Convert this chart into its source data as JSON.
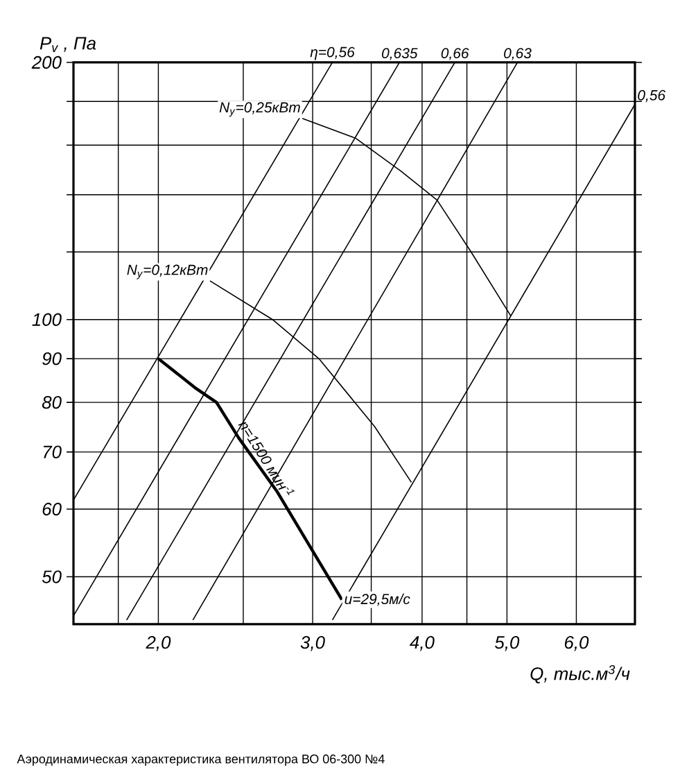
{
  "chart_data": {
    "type": "line",
    "xlabel": "Q, тыс.м$^{3}$/ч",
    "ylabel": "P$_{v}$ , Па",
    "log": "xy",
    "grid": true,
    "marker": "none",
    "line_style": "solid",
    "xlim": [
      1.6,
      7.0
    ],
    "ylim": [
      44,
      200
    ],
    "xticks": [
      {
        "value": 1.8,
        "label": null
      },
      {
        "value": 2.0,
        "label": "2,0"
      },
      {
        "value": 2.5,
        "label": null
      },
      {
        "value": 3.0,
        "label": "3,0"
      },
      {
        "value": 3.5,
        "label": null
      },
      {
        "value": 4.0,
        "label": "4,0"
      },
      {
        "value": 4.5,
        "label": null
      },
      {
        "value": 5.0,
        "label": "5,0"
      },
      {
        "value": 6.0,
        "label": "6,0"
      }
    ],
    "yticks": [
      50,
      60,
      70,
      80,
      90,
      100,
      {
        "value": 120,
        "label": null
      },
      {
        "value": 140,
        "label": null
      },
      {
        "value": 160,
        "label": null
      },
      {
        "value": 180,
        "label": null
      },
      200
    ],
    "series": [
      {
        "name": "n=1500 мин$^{-1}$",
        "color": "#000000",
        "x": [
          2.0,
          2.21,
          2.33,
          2.47,
          2.73,
          3.24
        ],
        "values": [
          90,
          83,
          80,
          72.7,
          63,
          47
        ]
      },
      {
        "name": "η=0,56",
        "color": "#000000",
        "x": [
          1.6,
          3.16
        ],
        "values": [
          61.5,
          200
        ]
      },
      {
        "name": "0,635",
        "color": "#000000",
        "x": [
          1.6,
          3.77
        ],
        "values": [
          45,
          200
        ]
      },
      {
        "name": "0,66",
        "color": "#000000",
        "x": [
          1.84,
          4.36
        ],
        "values": [
          44.5,
          200
        ]
      },
      {
        "name": "0,63",
        "color": "#000000",
        "x": [
          2.19,
          5.14
        ],
        "values": [
          44.5,
          200
        ]
      },
      {
        "name": "0,56",
        "color": "#000000",
        "x": [
          3.16,
          7.0
        ],
        "values": [
          44.5,
          178.6
        ]
      },
      {
        "name": "N$_{y}$=0,25кВт",
        "color": "#000000",
        "x": [
          2.92,
          3.36,
          3.79,
          4.16,
          4.55,
          5.05
        ],
        "values": [
          172,
          163,
          149,
          138,
          120,
          101
        ]
      },
      {
        "name": "N$_{y}$=0,12кВт",
        "color": "#000000",
        "x": [
          2.29,
          2.7,
          3.05,
          3.53,
          3.89
        ],
        "values": [
          111,
          100,
          90,
          75,
          64.5
        ]
      }
    ],
    "annotations": [
      {
        "text": "u=29,5м/с",
        "x": 3.24,
        "y": 47
      },
      "Аэродинамическая характеристика вентилятора ВО 06-300 №4"
    ]
  }
}
